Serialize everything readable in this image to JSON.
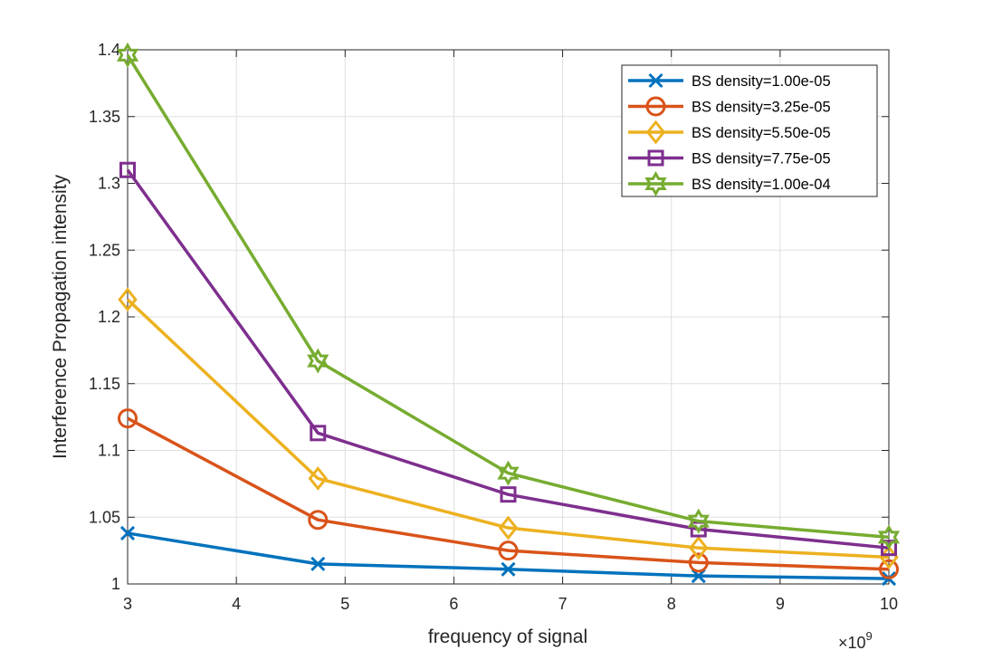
{
  "chart_data": {
    "type": "line",
    "title": "",
    "xlabel": "frequency of signal",
    "ylabel": "Interference Propagation intensity",
    "x_exponent": {
      "times": "×10",
      "power": "9"
    },
    "x": [
      3,
      4.75,
      6.5,
      8.25,
      10
    ],
    "xlim": [
      3,
      10
    ],
    "ylim": [
      1,
      1.4
    ],
    "xticks": [
      3,
      4,
      5,
      6,
      7,
      8,
      9,
      10
    ],
    "xtick_labels": [
      "3",
      "4",
      "5",
      "6",
      "7",
      "8",
      "9",
      "10"
    ],
    "yticks": [
      1,
      1.05,
      1.1,
      1.15,
      1.2,
      1.25,
      1.3,
      1.35,
      1.4
    ],
    "ytick_labels": [
      "1",
      "1.05",
      "1.1",
      "1.15",
      "1.2",
      "1.25",
      "1.3",
      "1.35",
      "1.4"
    ],
    "grid": true,
    "legend_position": "top-right",
    "series": [
      {
        "name": "BS density=1.00e-05",
        "color": "#0072BD",
        "marker": "x",
        "values": [
          1.038,
          1.015,
          1.011,
          1.006,
          1.004
        ]
      },
      {
        "name": "BS density=3.25e-05",
        "color": "#D95319",
        "marker": "circle",
        "values": [
          1.124,
          1.048,
          1.025,
          1.016,
          1.011
        ]
      },
      {
        "name": "BS density=5.50e-05",
        "color": "#EDB120",
        "marker": "diamond",
        "values": [
          1.213,
          1.079,
          1.042,
          1.027,
          1.02
        ]
      },
      {
        "name": "BS density=7.75e-05",
        "color": "#7E2F8E",
        "marker": "square",
        "values": [
          1.31,
          1.113,
          1.067,
          1.041,
          1.027
        ]
      },
      {
        "name": "BS density=1.00e-04",
        "color": "#77AC30",
        "marker": "hexagram",
        "values": [
          1.396,
          1.167,
          1.083,
          1.047,
          1.035
        ]
      }
    ]
  }
}
